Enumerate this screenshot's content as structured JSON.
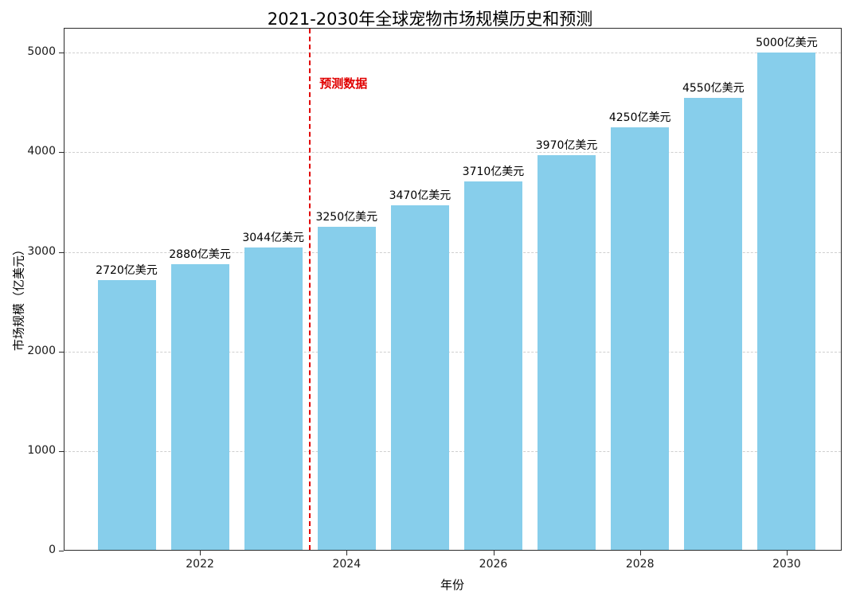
{
  "title": "2021-2030年全球宠物市场规模历史和预测",
  "axes": {
    "xlabel": "年份",
    "ylabel": "市场规模（亿美元）"
  },
  "annotation": {
    "text": "预测数据",
    "color": "#e00000"
  },
  "chart_data": {
    "type": "bar",
    "title": "2021-2030年全球宠物市场规模历史和预测",
    "xlabel": "年份",
    "ylabel": "市场规模（亿美元）",
    "categories": [
      2021,
      2022,
      2023,
      2024,
      2025,
      2026,
      2027,
      2028,
      2029,
      2030
    ],
    "values": [
      2720,
      2880,
      3044,
      3250,
      3470,
      3710,
      3970,
      4250,
      4550,
      5000
    ],
    "value_labels": [
      "2720亿美元",
      "2880亿美元",
      "3044亿美元",
      "3250亿美元",
      "3470亿美元",
      "3710亿美元",
      "3970亿美元",
      "4250亿美元",
      "4550亿美元",
      "5000亿美元"
    ],
    "bar_color": "#87CEEB",
    "ylim": [
      0,
      5250
    ],
    "yticks": [
      0,
      1000,
      2000,
      3000,
      4000,
      5000
    ],
    "xticks": [
      2022,
      2024,
      2026,
      2028,
      2030
    ],
    "grid": "horizontal-dashed",
    "legend_position": "none",
    "forecast_divider_x": 2023.5,
    "forecast_divider_style": "red-dashed-vertical",
    "forecast_label": "预测数据",
    "history_years": [
      2021,
      2022,
      2023
    ],
    "forecast_years": [
      2024,
      2025,
      2026,
      2027,
      2028,
      2029,
      2030
    ]
  }
}
